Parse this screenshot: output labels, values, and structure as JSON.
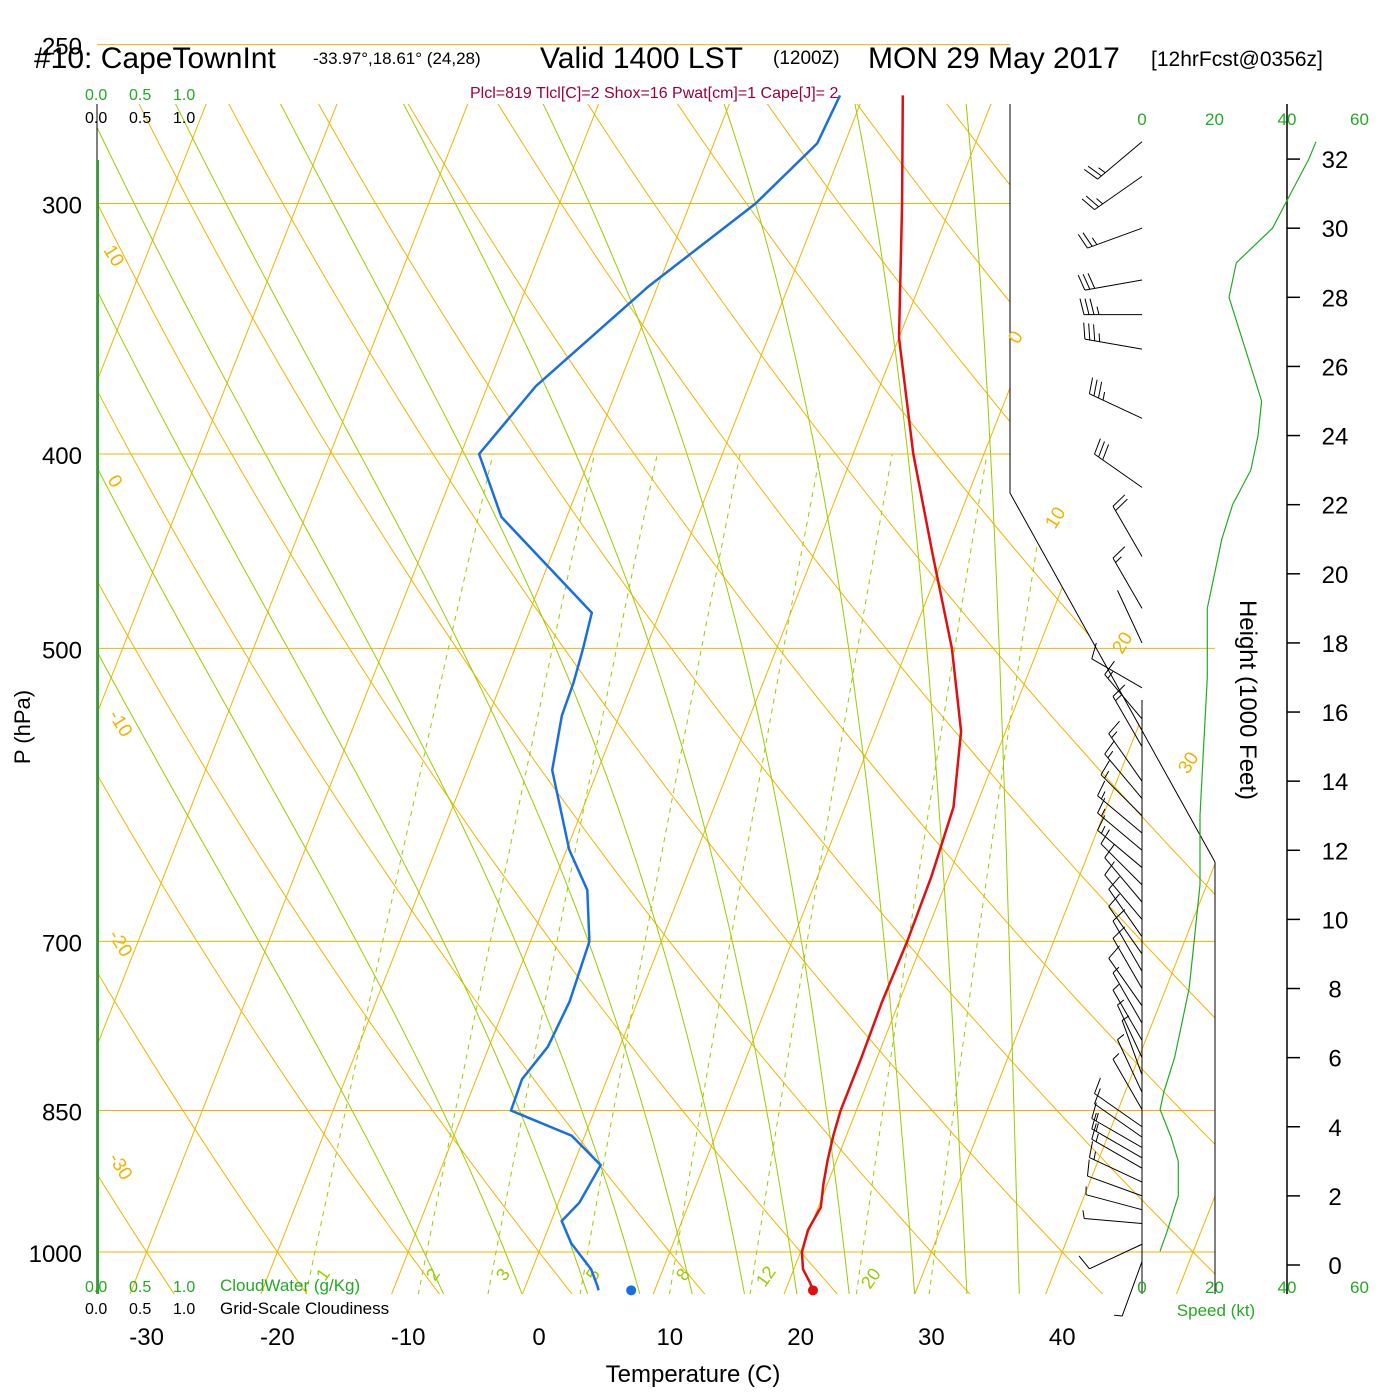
{
  "header": {
    "station": "#10: CapeTownInt",
    "coords": "-33.97°,18.61° (24,28)",
    "valid": "Valid 1400 LST",
    "zulu": "(1200Z)",
    "date": "MON 29 May 2017",
    "forecast": "[12hrFcst@0356z]",
    "indices": "Plcl=819 Tlcl[C]=2 Shox=16 Pwat[cm]=1 Cape[J]= 2"
  },
  "colors": {
    "isotherm": "#f0b400",
    "dry_adiabat": "#f0b400",
    "moist_adiabat": "#99cc00",
    "mixing_ratio": "#99cc00",
    "temperature": "#e01010",
    "dewpoint": "#1a6fe0",
    "cloud_axis": "#22aa22",
    "wind_profile": "#22aa22",
    "indices_text": "#990044"
  },
  "chart_data": {
    "type": "line",
    "title": "Skew-T sounding",
    "xlabel": "Temperature (C)",
    "ylabel": "P (hPa)",
    "xlim": [
      -34,
      36
    ],
    "ylim_hpa": [
      1050,
      250
    ],
    "x_ticks": [
      -30,
      -20,
      -10,
      0,
      10,
      20,
      30,
      40
    ],
    "pressure_ticks": [
      1000,
      850,
      700,
      500,
      400,
      300,
      250
    ],
    "dry_adiabat_labels": [
      "10",
      "0",
      "-10",
      "-20",
      "-30",
      "0",
      "10",
      "20",
      "30"
    ],
    "moist_adiabat_labels": [
      "5",
      "8",
      "12",
      "20"
    ],
    "mixing_ratio_labels": [
      "1",
      "2",
      "3"
    ],
    "series": [
      {
        "name": "Temperature",
        "points": [
          [
            1045,
            22.1
          ],
          [
            1035,
            21.6
          ],
          [
            1020,
            20.7
          ],
          [
            1000,
            20.1
          ],
          [
            975,
            19.9
          ],
          [
            950,
            20.2
          ],
          [
            925,
            19.7
          ],
          [
            900,
            19.3
          ],
          [
            875,
            19.0
          ],
          [
            850,
            18.8
          ],
          [
            800,
            18.8
          ],
          [
            750,
            18.7
          ],
          [
            700,
            18.8
          ],
          [
            650,
            18.7
          ],
          [
            600,
            18.3
          ],
          [
            550,
            16.6
          ],
          [
            500,
            13.4
          ],
          [
            450,
            9.2
          ],
          [
            400,
            4.6
          ],
          [
            350,
            0.0
          ],
          [
            300,
            -3.8
          ],
          [
            265,
            -7.0
          ]
        ]
      },
      {
        "name": "Dewpoint",
        "points": [
          [
            1045,
            5.7
          ],
          [
            1040,
            5.5
          ],
          [
            1020,
            4.5
          ],
          [
            990,
            2.2
          ],
          [
            965,
            0.8
          ],
          [
            945,
            1.6
          ],
          [
            905,
            2.1
          ],
          [
            875,
            -1.0
          ],
          [
            850,
            -6.4
          ],
          [
            820,
            -6.5
          ],
          [
            790,
            -5.5
          ],
          [
            750,
            -5.2
          ],
          [
            700,
            -5.5
          ],
          [
            660,
            -7.2
          ],
          [
            630,
            -9.8
          ],
          [
            575,
            -13.5
          ],
          [
            540,
            -14.4
          ],
          [
            520,
            -14.5
          ],
          [
            500,
            -14.8
          ],
          [
            480,
            -15.2
          ],
          [
            430,
            -25.0
          ],
          [
            400,
            -28.6
          ],
          [
            370,
            -26.3
          ],
          [
            330,
            -20.7
          ],
          [
            300,
            -15.0
          ],
          [
            280,
            -12.1
          ],
          [
            265,
            -11.8
          ]
        ]
      },
      {
        "name": "Parcel",
        "points": [
          [
            1045,
            8.2
          ]
        ]
      },
      {
        "name": "Surface",
        "points": [
          [
            1045,
            22.1
          ]
        ]
      }
    ],
    "height_axis": {
      "label": "Height (1000 Feet)",
      "ticks": [
        0,
        2,
        4,
        6,
        8,
        10,
        12,
        14,
        16,
        18,
        20,
        22,
        24,
        26,
        28,
        30,
        32
      ]
    },
    "wind_speed_axis": {
      "label": "Speed (kt)",
      "ticks": [
        0,
        20,
        40,
        60
      ]
    },
    "cloud_axes": {
      "cloudwater_label": "CloudWater (g/Kg)",
      "cloudiness_label": "Grid-Scale Cloudiness",
      "ticks": [
        "0.0",
        "0.5",
        "1.0"
      ]
    },
    "wind_barbs": [
      [
        0.1,
        200,
        5
      ],
      [
        0.6,
        245,
        13
      ],
      [
        1.2,
        275,
        8
      ],
      [
        1.6,
        285,
        9
      ],
      [
        2.0,
        290,
        13
      ],
      [
        2.4,
        295,
        17
      ],
      [
        2.8,
        300,
        19
      ],
      [
        3.1,
        300,
        18
      ],
      [
        3.4,
        300,
        15
      ],
      [
        3.7,
        305,
        13
      ],
      [
        4.0,
        305,
        13
      ],
      [
        4.5,
        330,
        8
      ],
      [
        5.0,
        335,
        8
      ],
      [
        5.5,
        340,
        8
      ],
      [
        6.0,
        335,
        7
      ],
      [
        6.5,
        330,
        8
      ],
      [
        7.0,
        330,
        9
      ],
      [
        7.5,
        325,
        10
      ],
      [
        8.0,
        330,
        12
      ],
      [
        8.5,
        330,
        13
      ],
      [
        9.0,
        325,
        14
      ],
      [
        9.5,
        325,
        14
      ],
      [
        10.0,
        320,
        14
      ],
      [
        10.5,
        320,
        14
      ],
      [
        11.0,
        315,
        14
      ],
      [
        11.5,
        310,
        15
      ],
      [
        12.0,
        310,
        15
      ],
      [
        12.5,
        310,
        16
      ],
      [
        13.0,
        315,
        16
      ],
      [
        13.5,
        320,
        16
      ],
      [
        14.0,
        325,
        16
      ],
      [
        15.0,
        330,
        16
      ],
      [
        15.8,
        320,
        16
      ],
      [
        16.7,
        300,
        10
      ],
      [
        18.0,
        335,
        0
      ],
      [
        19.0,
        330,
        18
      ],
      [
        20.5,
        330,
        22
      ],
      [
        22.5,
        305,
        32
      ],
      [
        24.5,
        295,
        35
      ],
      [
        26.5,
        280,
        35
      ],
      [
        27.5,
        270,
        35
      ],
      [
        28.5,
        260,
        30
      ],
      [
        30.0,
        250,
        28
      ],
      [
        31.5,
        235,
        28
      ],
      [
        32.5,
        230,
        28
      ]
    ],
    "wind_profile": [
      [
        0.4,
        5
      ],
      [
        1.0,
        7
      ],
      [
        2.0,
        10
      ],
      [
        3.0,
        10
      ],
      [
        3.7,
        8
      ],
      [
        4.5,
        5
      ],
      [
        5.0,
        6
      ],
      [
        6.0,
        9
      ],
      [
        7.0,
        11
      ],
      [
        8.0,
        13
      ],
      [
        9.0,
        14
      ],
      [
        10.0,
        15
      ],
      [
        11.0,
        16
      ],
      [
        13.0,
        16
      ],
      [
        15.0,
        17
      ],
      [
        17.0,
        18
      ],
      [
        19.0,
        18
      ],
      [
        21.0,
        22
      ],
      [
        22.0,
        25
      ],
      [
        23.0,
        30
      ],
      [
        24.0,
        32
      ],
      [
        25.0,
        33
      ],
      [
        26.0,
        30
      ],
      [
        27.0,
        27
      ],
      [
        28.0,
        24
      ],
      [
        29.0,
        26
      ],
      [
        30.0,
        36
      ],
      [
        31.0,
        41
      ],
      [
        32.0,
        46
      ],
      [
        32.5,
        48
      ]
    ]
  }
}
